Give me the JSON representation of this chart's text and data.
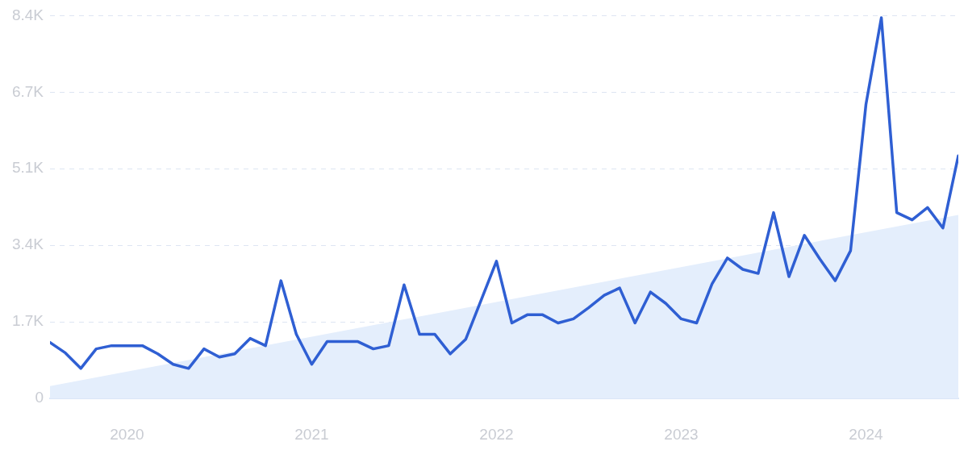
{
  "chart_data": {
    "type": "line",
    "x": [
      "2019-08",
      "2019-09",
      "2019-10",
      "2019-11",
      "2019-12",
      "2020-01",
      "2020-02",
      "2020-03",
      "2020-04",
      "2020-05",
      "2020-06",
      "2020-07",
      "2020-08",
      "2020-09",
      "2020-10",
      "2020-11",
      "2020-12",
      "2021-01",
      "2021-02",
      "2021-03",
      "2021-04",
      "2021-05",
      "2021-06",
      "2021-07",
      "2021-08",
      "2021-09",
      "2021-10",
      "2021-11",
      "2021-12",
      "2022-01",
      "2022-02",
      "2022-03",
      "2022-04",
      "2022-05",
      "2022-06",
      "2022-07",
      "2022-08",
      "2022-09",
      "2022-10",
      "2022-11",
      "2022-12",
      "2023-01",
      "2023-02",
      "2023-03",
      "2023-04",
      "2023-05",
      "2023-06",
      "2023-07",
      "2023-08",
      "2023-09",
      "2023-10",
      "2023-11",
      "2023-12",
      "2024-01",
      "2024-02",
      "2024-03",
      "2024-04",
      "2024-05",
      "2024-06",
      "2024-07"
    ],
    "series": [
      {
        "type": "area",
        "color": "#e4eefc",
        "x": [
          "2019-08",
          "2024-07"
        ],
        "values": [
          270,
          4040
        ]
      },
      {
        "type": "line",
        "color": "#2f5fd3",
        "values": [
          1230,
          1000,
          660,
          1090,
          1160,
          1160,
          1160,
          980,
          750,
          660,
          1090,
          910,
          980,
          1320,
          1160,
          2590,
          1410,
          750,
          1250,
          1250,
          1250,
          1090,
          1160,
          2500,
          1410,
          1410,
          980,
          1300,
          2160,
          3020,
          1660,
          1840,
          1840,
          1660,
          1750,
          2000,
          2270,
          2430,
          1660,
          2340,
          2090,
          1750,
          1660,
          2520,
          3090,
          2840,
          2750,
          4090,
          2680,
          3590,
          3070,
          2590,
          3250,
          6470,
          8380,
          4090,
          3930,
          4200,
          3750,
          5340
        ]
      }
    ],
    "xlim": [
      "2019-08",
      "2024-07"
    ],
    "xticks": [
      {
        "value": "2020-01",
        "label": "2020"
      },
      {
        "value": "2021-01",
        "label": "2021"
      },
      {
        "value": "2022-01",
        "label": "2022"
      },
      {
        "value": "2023-01",
        "label": "2023"
      },
      {
        "value": "2024-01",
        "label": "2024"
      }
    ],
    "ylim": [
      0,
      8425
    ],
    "yticks": [
      0,
      {
        "value": 1685,
        "label": "1.7K"
      },
      {
        "value": 3370,
        "label": "3.4K"
      },
      {
        "value": 5055,
        "label": "5.1K"
      },
      {
        "value": 6740,
        "label": "6.7K"
      },
      {
        "value": 8425,
        "label": "8.4K"
      }
    ],
    "grid": "y",
    "legend": false,
    "marker": "none",
    "line_style": "solid"
  }
}
